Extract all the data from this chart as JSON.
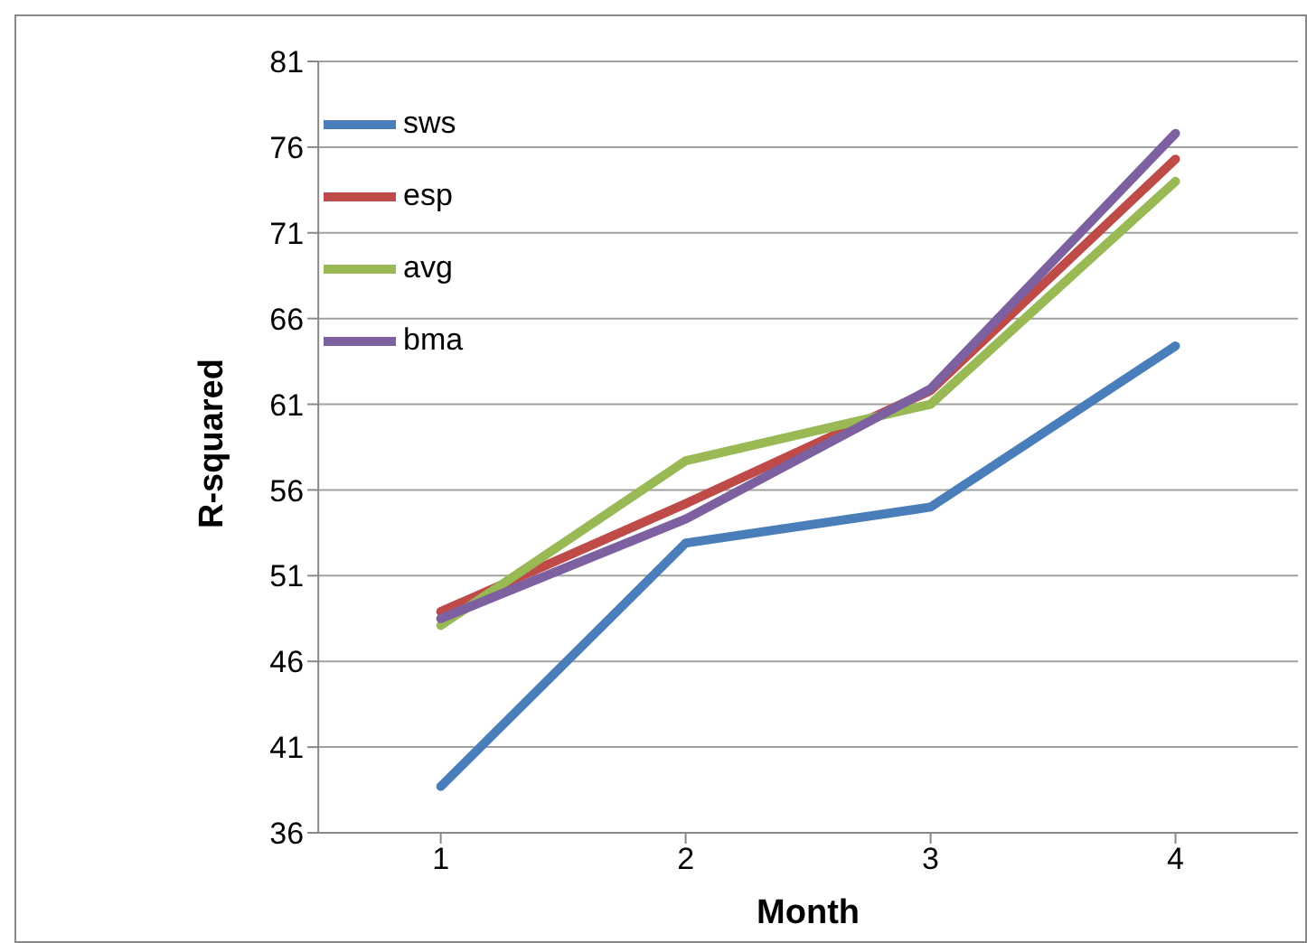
{
  "chart_data": {
    "type": "line",
    "xlabel": "Month",
    "ylabel": "R-squared",
    "categories": [
      "1",
      "2",
      "3",
      "4"
    ],
    "series": [
      {
        "name": "sws",
        "color": "#4a7ebb",
        "values": [
          38.7,
          52.9,
          55.0,
          64.4
        ]
      },
      {
        "name": "esp",
        "color": "#be4b48",
        "values": [
          48.9,
          55.2,
          61.8,
          75.3
        ]
      },
      {
        "name": "avg",
        "color": "#98b954",
        "values": [
          48.1,
          57.7,
          61.0,
          74.0
        ]
      },
      {
        "name": "bma",
        "color": "#7d60a0",
        "values": [
          48.5,
          54.3,
          61.9,
          76.8
        ]
      }
    ],
    "ylim": [
      36,
      81
    ],
    "yticks": [
      36,
      41,
      46,
      51,
      56,
      61,
      66,
      71,
      76,
      81
    ],
    "grid": "y",
    "legend": "top left",
    "marker": "none",
    "line_style": "solid"
  }
}
